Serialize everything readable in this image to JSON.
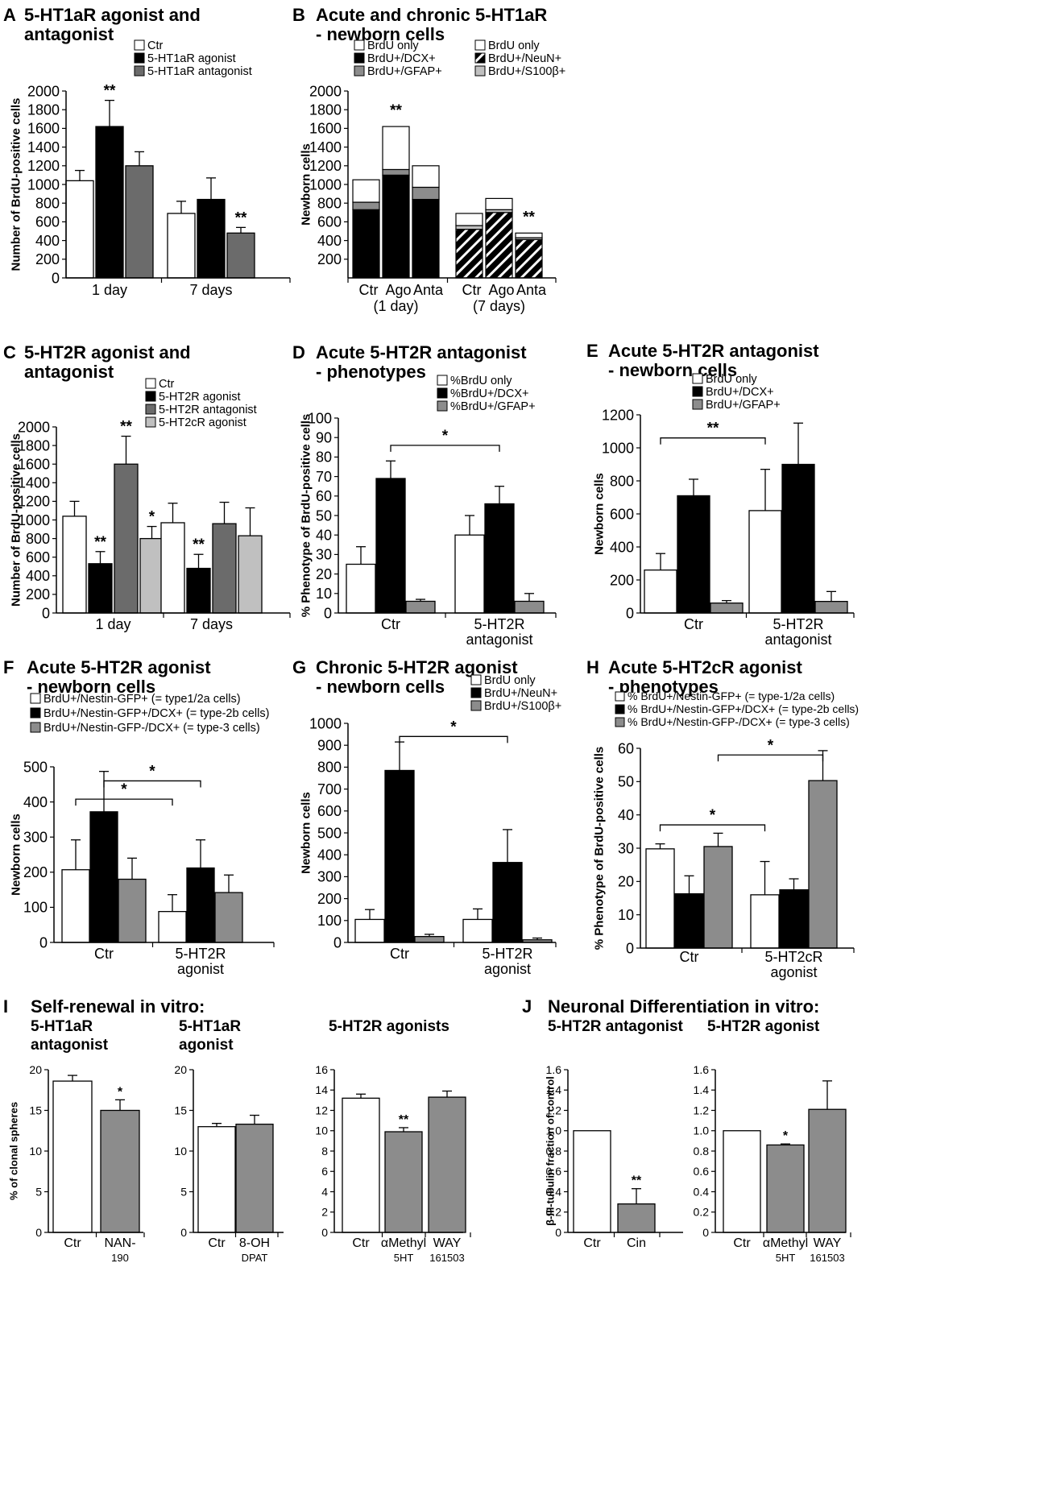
{
  "colors": {
    "white": "#ffffff",
    "black": "#000000",
    "dark": "#6b6b6b",
    "gray": "#8c8c8c",
    "light": "#c0c0c0"
  },
  "chart_data": [
    {
      "id": "A",
      "type": "bar",
      "letter": "A",
      "title": [
        "5-HT1aR agonist and",
        "antagonist"
      ],
      "ylabel": "Number of BrdU-positive cells",
      "ylim": [
        0,
        2000
      ],
      "yticks": [
        "0",
        "200",
        "400",
        "600",
        "800",
        "1000",
        "1200",
        "1400",
        "1600",
        "1800",
        "2000"
      ],
      "legend": [
        "Ctr",
        "5-HT1aR agonist",
        "5-HT1aR antagonist"
      ],
      "fills": [
        "white",
        "black",
        "dark"
      ],
      "groups": [
        {
          "label": [
            "1 day"
          ],
          "values": [
            1040,
            1620,
            1200
          ],
          "errors": [
            110,
            280,
            150
          ],
          "stars": [
            "",
            "**",
            ""
          ]
        },
        {
          "label": [
            "7 days"
          ],
          "values": [
            690,
            840,
            480
          ],
          "errors": [
            130,
            230,
            60
          ],
          "stars": [
            "",
            "",
            "**"
          ]
        }
      ]
    },
    {
      "id": "B",
      "type": "stacked_bar",
      "letter": "B",
      "title": [
        "Acute and chronic 5-HT1aR",
        "- newborn cells"
      ],
      "ylabel": "Newborn cells",
      "ylim": [
        0,
        2000
      ],
      "yticks": [
        "200",
        "400",
        "600",
        "800",
        "1000",
        "1200",
        "1400",
        "1600",
        "1800",
        "2000"
      ],
      "legend": [
        "BrdU only",
        "BrdU+/DCX+",
        "BrdU+/GFAP+",
        "BrdU only",
        "BrdU+/NeuN+",
        "BrdU+/S100β+"
      ],
      "legend_fills": [
        "white",
        "black",
        "gray",
        "white",
        "hatch",
        "light"
      ],
      "categories": [
        "Ctr",
        "Ago",
        "Anta",
        "Ctr",
        "Ago",
        "Anta"
      ],
      "group_labels": [
        "(1 day)",
        "(7 days)"
      ],
      "series_fills": [
        [
          "black",
          "gray",
          "white"
        ],
        [
          "black",
          "gray",
          "white"
        ],
        [
          "black",
          "gray",
          "white"
        ],
        [
          "hatch",
          "light",
          "white"
        ],
        [
          "hatch",
          "light",
          "white"
        ],
        [
          "hatch",
          "light",
          "white"
        ]
      ],
      "segments": [
        [
          730,
          80,
          240
        ],
        [
          1100,
          60,
          460
        ],
        [
          840,
          130,
          230
        ],
        [
          520,
          40,
          130
        ],
        [
          700,
          30,
          120
        ],
        [
          410,
          20,
          50
        ]
      ],
      "stars": [
        "",
        "**",
        "",
        "",
        "",
        "**"
      ]
    },
    {
      "id": "C",
      "type": "bar",
      "letter": "C",
      "title": [
        "5-HT2R agonist and",
        "antagonist"
      ],
      "ylabel": "Number of BrdU-positive cells",
      "ylim": [
        0,
        2000
      ],
      "yticks": [
        "0",
        "200",
        "400",
        "600",
        "800",
        "1000",
        "1200",
        "1400",
        "1600",
        "1800",
        "2000"
      ],
      "legend": [
        "Ctr",
        "5-HT2R agonist",
        "5-HT2R antagonist",
        "5-HT2cR agonist"
      ],
      "fills": [
        "white",
        "black",
        "dark",
        "light"
      ],
      "groups": [
        {
          "label": [
            "1 day"
          ],
          "values": [
            1040,
            530,
            1600,
            800
          ],
          "errors": [
            160,
            130,
            300,
            130
          ],
          "stars": [
            "",
            "**",
            "**",
            "*"
          ]
        },
        {
          "label": [
            "7 days"
          ],
          "values": [
            970,
            480,
            960,
            830
          ],
          "errors": [
            210,
            150,
            230,
            300
          ],
          "stars": [
            "",
            "**",
            "",
            ""
          ]
        }
      ]
    },
    {
      "id": "D",
      "type": "bar",
      "letter": "D",
      "title": [
        "Acute 5-HT2R antagonist",
        "- phenotypes"
      ],
      "ylabel": "% Phenotype of BrdU-positive cells",
      "ylim": [
        0,
        100
      ],
      "yticks": [
        "0",
        "10",
        "20",
        "30",
        "40",
        "50",
        "60",
        "70",
        "80",
        "90",
        "100"
      ],
      "legend": [
        "%BrdU only",
        "%BrdU+/DCX+",
        "%BrdU+/GFAP+"
      ],
      "fills": [
        "white",
        "black",
        "gray"
      ],
      "groups": [
        {
          "label": [
            "Ctr"
          ],
          "values": [
            25,
            69,
            6
          ],
          "errors": [
            9,
            9,
            1
          ],
          "stars": [
            "",
            "",
            ""
          ]
        },
        {
          "label": [
            "5-HT2R",
            "antagonist"
          ],
          "values": [
            40,
            56,
            6
          ],
          "errors": [
            10,
            9,
            4
          ],
          "stars": [
            "",
            "",
            ""
          ]
        }
      ],
      "brackets": [
        {
          "from": [
            0,
            1
          ],
          "to": [
            1,
            1
          ],
          "y": 86,
          "label": "*"
        }
      ]
    },
    {
      "id": "E",
      "type": "bar",
      "letter": "E",
      "title": [
        "Acute 5-HT2R antagonist",
        "- newborn cells"
      ],
      "ylabel": "Newborn cells",
      "ylim": [
        0,
        1200
      ],
      "yticks": [
        "0",
        "200",
        "400",
        "600",
        "800",
        "1000",
        "1200"
      ],
      "legend": [
        "BrdU only",
        "BrdU+/DCX+",
        "BrdU+/GFAP+"
      ],
      "fills": [
        "white",
        "black",
        "gray"
      ],
      "groups": [
        {
          "label": [
            "Ctr"
          ],
          "values": [
            260,
            710,
            60
          ],
          "errors": [
            100,
            100,
            15
          ],
          "stars": [
            "",
            "",
            ""
          ]
        },
        {
          "label": [
            "5-HT2R",
            "antagonist"
          ],
          "values": [
            620,
            900,
            70
          ],
          "errors": [
            250,
            250,
            60
          ],
          "stars": [
            "",
            "",
            ""
          ]
        }
      ],
      "brackets": [
        {
          "from": [
            0,
            0
          ],
          "to": [
            1,
            0
          ],
          "y": 1060,
          "label": "**"
        }
      ]
    },
    {
      "id": "F",
      "type": "bar",
      "letter": "F",
      "title": [
        "Acute 5-HT2R agonist",
        "- newborn cells"
      ],
      "ylabel": "Newborn cells",
      "ylim": [
        0,
        500
      ],
      "yticks": [
        "0",
        "100",
        "200",
        "300",
        "400",
        "500"
      ],
      "legend": [
        "BrdU+/Nestin-GFP+ (= type1/2a cells)",
        "BrdU+/Nestin-GFP+/DCX+ (= type-2b cells)",
        "BrdU+/Nestin-GFP-/DCX+ (= type-3 cells)"
      ],
      "fills": [
        "white",
        "black",
        "gray"
      ],
      "groups": [
        {
          "label": [
            "Ctr"
          ],
          "values": [
            207,
            372,
            180
          ],
          "errors": [
            85,
            115,
            60
          ],
          "stars": [
            "",
            "",
            ""
          ]
        },
        {
          "label": [
            "5-HT2R",
            "agonist"
          ],
          "values": [
            88,
            212,
            142
          ],
          "errors": [
            48,
            80,
            50
          ],
          "stars": [
            "",
            "",
            ""
          ]
        }
      ],
      "brackets": [
        {
          "from": [
            0,
            0
          ],
          "to": [
            1,
            0
          ],
          "y": 408,
          "label": "*"
        },
        {
          "from": [
            0,
            1
          ],
          "to": [
            1,
            1
          ],
          "y": 460,
          "label": "*"
        }
      ]
    },
    {
      "id": "G",
      "type": "bar",
      "letter": "G",
      "title": [
        "Chronic 5-HT2R agonist",
        "- newborn cells"
      ],
      "ylabel": "Newborn cells",
      "ylim": [
        0,
        1000
      ],
      "yticks": [
        "0",
        "100",
        "200",
        "300",
        "400",
        "500",
        "600",
        "700",
        "800",
        "900",
        "1000"
      ],
      "legend": [
        "BrdU only",
        "BrdU+/NeuN+",
        "BrdU+/S100β+"
      ],
      "fills": [
        "white",
        "black",
        "gray"
      ],
      "groups": [
        {
          "label": [
            "Ctr"
          ],
          "values": [
            105,
            785,
            27
          ],
          "errors": [
            45,
            130,
            10
          ],
          "stars": [
            "",
            "",
            ""
          ]
        },
        {
          "label": [
            "5-HT2R",
            "agonist"
          ],
          "values": [
            105,
            365,
            12
          ],
          "errors": [
            48,
            150,
            8
          ],
          "stars": [
            "",
            "",
            ""
          ]
        }
      ],
      "brackets": [
        {
          "from": [
            0,
            1
          ],
          "to": [
            1,
            1
          ],
          "y": 940,
          "label": "*"
        }
      ]
    },
    {
      "id": "H",
      "type": "bar",
      "letter": "H",
      "title": [
        "Acute 5-HT2cR agonist",
        "- phenotypes"
      ],
      "ylabel": "% Phenotype of BrdU-positive cells",
      "ylim": [
        0,
        60
      ],
      "yticks": [
        "0",
        "10",
        "20",
        "30",
        "40",
        "50",
        "60"
      ],
      "legend": [
        "% BrdU+/Nestin-GFP+ (= type-1/2a cells)",
        "% BrdU+/Nestin-GFP+/DCX+ (= type-2b cells)",
        "% BrdU+/Nestin-GFP-/DCX+ (= type-3 cells)"
      ],
      "fills": [
        "white",
        "black",
        "gray"
      ],
      "groups": [
        {
          "label": [
            "Ctr"
          ],
          "values": [
            29.8,
            16.3,
            30.5
          ],
          "errors": [
            1.5,
            5.4,
            4
          ],
          "stars": [
            "",
            "",
            ""
          ]
        },
        {
          "label": [
            "5-HT2cR",
            "agonist"
          ],
          "values": [
            16,
            17.5,
            50.3
          ],
          "errors": [
            10,
            3.3,
            9
          ],
          "stars": [
            "",
            "",
            ""
          ]
        }
      ],
      "brackets": [
        {
          "from": [
            0,
            0
          ],
          "to": [
            1,
            0
          ],
          "y": 37,
          "label": "*"
        },
        {
          "from": [
            0,
            2
          ],
          "to": [
            1,
            2
          ],
          "y": 58,
          "label": "*"
        }
      ]
    },
    {
      "id": "I1",
      "type": "bar",
      "letter": "I",
      "heading": "Self-renewal in vitro:",
      "title": [
        "5-HT1aR",
        "antagonist"
      ],
      "ylabel": "% of clonal spheres",
      "ylim": [
        0,
        20
      ],
      "yticks": [
        "0",
        "5",
        "10",
        "15",
        "20"
      ],
      "fills": [
        "white",
        "gray"
      ],
      "categories": [
        [
          "Ctr"
        ],
        [
          "NAN-",
          "190"
        ]
      ],
      "values": [
        18.6,
        15
      ],
      "errors": [
        0.7,
        1.3
      ],
      "stars": [
        "",
        "*"
      ]
    },
    {
      "id": "I2",
      "type": "bar",
      "title": [
        "5-HT1aR",
        "agonist"
      ],
      "ylim": [
        0,
        20
      ],
      "yticks": [
        "0",
        "5",
        "10",
        "15",
        "20"
      ],
      "fills": [
        "white",
        "gray"
      ],
      "categories": [
        [
          "Ctr"
        ],
        [
          "8-OH",
          "DPAT"
        ]
      ],
      "values": [
        13,
        13.3
      ],
      "errors": [
        0.4,
        1.1
      ],
      "stars": [
        "",
        ""
      ]
    },
    {
      "id": "I3",
      "type": "bar",
      "title": [
        "5-HT2R agonists"
      ],
      "ylim": [
        0,
        16
      ],
      "yticks": [
        "0",
        "2",
        "4",
        "6",
        "8",
        "10",
        "12",
        "14",
        "16"
      ],
      "fills": [
        "white",
        "gray",
        "gray"
      ],
      "categories": [
        [
          "Ctr"
        ],
        [
          "αMethyl",
          "5HT"
        ],
        [
          "WAY",
          "161503"
        ]
      ],
      "values": [
        13.2,
        9.9,
        13.3
      ],
      "errors": [
        0.4,
        0.4,
        0.6
      ],
      "stars": [
        "",
        "**",
        ""
      ]
    },
    {
      "id": "J1",
      "type": "bar",
      "letter": "J",
      "heading": "Neuronal Differentiation in vitro:",
      "title": [
        "5-HT2R antagonist"
      ],
      "ylabel": "β-III-tubulin fraction of control",
      "ylim": [
        0,
        1.6
      ],
      "yticks": [
        "0",
        "0.2",
        "0.4",
        "0.6",
        "0.8",
        "1.0",
        "1.2",
        "1.4",
        "1.6"
      ],
      "fills": [
        "white",
        "gray"
      ],
      "categories": [
        [
          "Ctr"
        ],
        [
          "Cin"
        ]
      ],
      "values": [
        1.0,
        0.28
      ],
      "errors": [
        0,
        0.15
      ],
      "stars": [
        "",
        "**"
      ]
    },
    {
      "id": "J2",
      "type": "bar",
      "title": [
        "5-HT2R agonist"
      ],
      "ylim": [
        0,
        1.6
      ],
      "yticks": [
        "0",
        "0.2",
        "0.4",
        "0.6",
        "0.8",
        "1.0",
        "1.2",
        "1.4",
        "1.6"
      ],
      "fills": [
        "white",
        "gray",
        "gray"
      ],
      "categories": [
        [
          "Ctr"
        ],
        [
          "αMethyl",
          "5HT"
        ],
        [
          "WAY",
          "161503"
        ]
      ],
      "values": [
        1.0,
        0.86,
        1.21
      ],
      "errors": [
        0,
        0.01,
        0.28
      ],
      "stars": [
        "",
        "*",
        ""
      ]
    }
  ]
}
